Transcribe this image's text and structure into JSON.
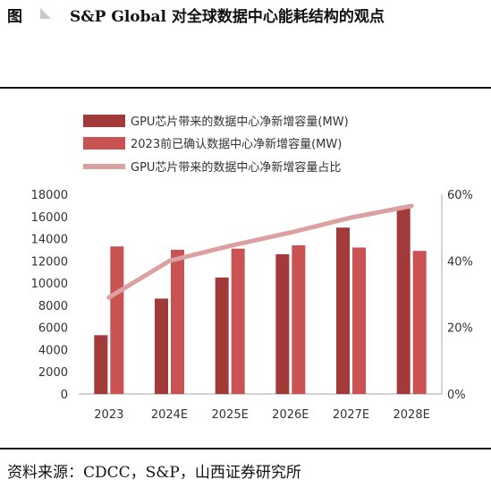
{
  "header": {
    "figure_label": "图",
    "title": "S&P Global 对全球数据中心能耗结构的观点"
  },
  "source": "资料来源：CDCC，S&P，山西证券研究所",
  "colors": {
    "series1": "#a23a3a",
    "series2": "#c95252",
    "series3": "#dba1a1",
    "axis": "#aaaaaa",
    "figure_mark": "#c8c8c8"
  },
  "chart_data": {
    "type": "bar",
    "categories": [
      "2023",
      "2024E",
      "2025E",
      "2026E",
      "2027E",
      "2028E"
    ],
    "series": [
      {
        "name": "GPU芯片带来的数据中心净新增容量(MW)",
        "type": "bar",
        "axis": "left",
        "values": [
          5300,
          8600,
          10500,
          12600,
          15000,
          16900
        ]
      },
      {
        "name": "2023前已确认数据中心净新增容量(MW)",
        "type": "bar",
        "axis": "left",
        "values": [
          13300,
          13000,
          13100,
          13400,
          13200,
          12900
        ]
      },
      {
        "name": "GPU芯片带来的数据中心净新增容量占比",
        "type": "line",
        "axis": "right",
        "values": [
          0.29,
          0.4,
          0.445,
          0.485,
          0.53,
          0.565
        ]
      }
    ],
    "y_left": {
      "min": 0,
      "max": 18000,
      "ticks": [
        "0",
        "2000",
        "4000",
        "6000",
        "8000",
        "10000",
        "12000",
        "14000",
        "16000",
        "18000"
      ]
    },
    "y_right": {
      "min": 0,
      "max": 0.6,
      "ticks": [
        "0%",
        "20%",
        "40%",
        "60%"
      ]
    },
    "legend_position": "top",
    "grid": false
  }
}
